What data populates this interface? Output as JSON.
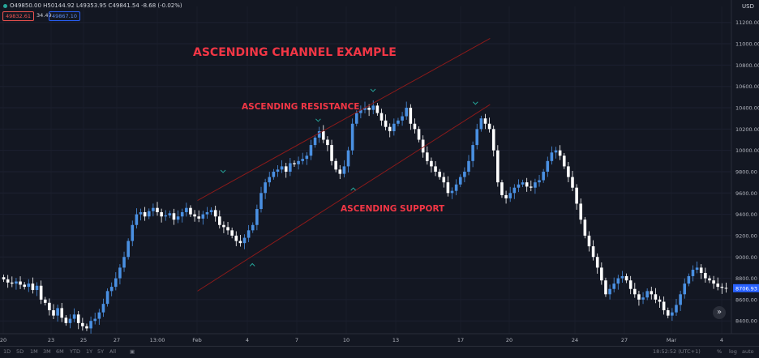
{
  "header": {
    "ohlc": "O49850.00 H50144.92 L49353.95 C49841.54 -8.68 (-0.02%)",
    "bid": "49832.61",
    "spread": "34.49",
    "ask": "49867.10",
    "currency": "USD"
  },
  "footer": {
    "ranges": [
      "1D",
      "5D",
      "1M",
      "3M",
      "6M",
      "YTD",
      "1Y",
      "5Y",
      "All"
    ],
    "clock": "18:52:52 (UTC+1)",
    "percent": "%",
    "log": "log",
    "auto": "auto"
  },
  "colors": {
    "up": "#4a90e2",
    "down": "#ffffff",
    "line": "#8b1a1a",
    "annotation": "#f23645",
    "marker": "#26a69a",
    "current_price": "#2962ff"
  },
  "chart_data": {
    "type": "candlestick",
    "title": "ASCENDING CHANNEL EXAMPLE",
    "annotations": [
      "ASCENDING RESISTANCE",
      "ASCENDING SUPPORT"
    ],
    "xlabels": [
      "20",
      "23",
      "25",
      "27",
      "13:00",
      "Feb",
      "4",
      "7",
      "10",
      "13",
      "17",
      "20",
      "24",
      "27",
      "Mar",
      "4"
    ],
    "ylabels": [
      "8400.00",
      "8600.00",
      "8800.00",
      "9000.00",
      "9200.00",
      "9400.00",
      "9600.00",
      "9800.00",
      "10000.00",
      "10200.00",
      "10400.00",
      "10600.00",
      "10800.00",
      "11000.00",
      "11200.00"
    ],
    "ylim": [
      8280,
      11350
    ],
    "current_price": "8706.93",
    "current_value": 8707,
    "channel": {
      "resistance": {
        "from": [
          0.27,
          9530
        ],
        "to": [
          0.67,
          11050
        ]
      },
      "support": {
        "from": [
          0.27,
          8680
        ],
        "to": [
          0.67,
          10430
        ]
      }
    },
    "markers": [
      {
        "x": 0.305,
        "value": 9800,
        "dir": "down"
      },
      {
        "x": 0.435,
        "value": 10280,
        "dir": "down"
      },
      {
        "x": 0.51,
        "value": 10560,
        "dir": "down"
      },
      {
        "x": 0.65,
        "value": 10440,
        "dir": "down"
      },
      {
        "x": 0.345,
        "value": 8930,
        "dir": "up"
      },
      {
        "x": 0.483,
        "value": 9640,
        "dir": "up"
      }
    ],
    "series": [
      8790,
      8760,
      8750,
      8770,
      8740,
      8720,
      8750,
      8690,
      8730,
      8600,
      8570,
      8500,
      8450,
      8520,
      8430,
      8380,
      8420,
      8460,
      8380,
      8350,
      8330,
      8400,
      8420,
      8480,
      8560,
      8680,
      8720,
      8800,
      8900,
      9000,
      9150,
      9300,
      9400,
      9420,
      9380,
      9430,
      9460,
      9420,
      9380,
      9390,
      9410,
      9350,
      9380,
      9420,
      9460,
      9400,
      9380,
      9360,
      9400,
      9420,
      9440,
      9380,
      9300,
      9280,
      9250,
      9200,
      9150,
      9130,
      9180,
      9250,
      9300,
      9450,
      9600,
      9700,
      9750,
      9800,
      9820,
      9850,
      9800,
      9880,
      9870,
      9900,
      9920,
      9950,
      10050,
      10120,
      10180,
      10100,
      10050,
      9900,
      9820,
      9780,
      9850,
      10000,
      10250,
      10350,
      10380,
      10400,
      10380,
      10420,
      10350,
      10280,
      10220,
      10180,
      10250,
      10280,
      10320,
      10400,
      10250,
      10200,
      10100,
      9980,
      9900,
      9850,
      9800,
      9750,
      9700,
      9600,
      9620,
      9680,
      9750,
      9800,
      9900,
      10050,
      10200,
      10300,
      10250,
      10200,
      10000,
      9700,
      9580,
      9550,
      9600,
      9650,
      9680,
      9700,
      9660,
      9650,
      9700,
      9720,
      9800,
      9900,
      9980,
      10000,
      9950,
      9850,
      9750,
      9650,
      9500,
      9350,
      9200,
      9100,
      9000,
      8900,
      8780,
      8650,
      8700,
      8750,
      8800,
      8820,
      8780,
      8700,
      8650,
      8600,
      8620,
      8680,
      8650,
      8600,
      8580,
      8500,
      8450,
      8480,
      8550,
      8650,
      8750,
      8820,
      8880,
      8900,
      8850,
      8800,
      8780,
      8750,
      8720,
      8710,
      8707
    ]
  }
}
